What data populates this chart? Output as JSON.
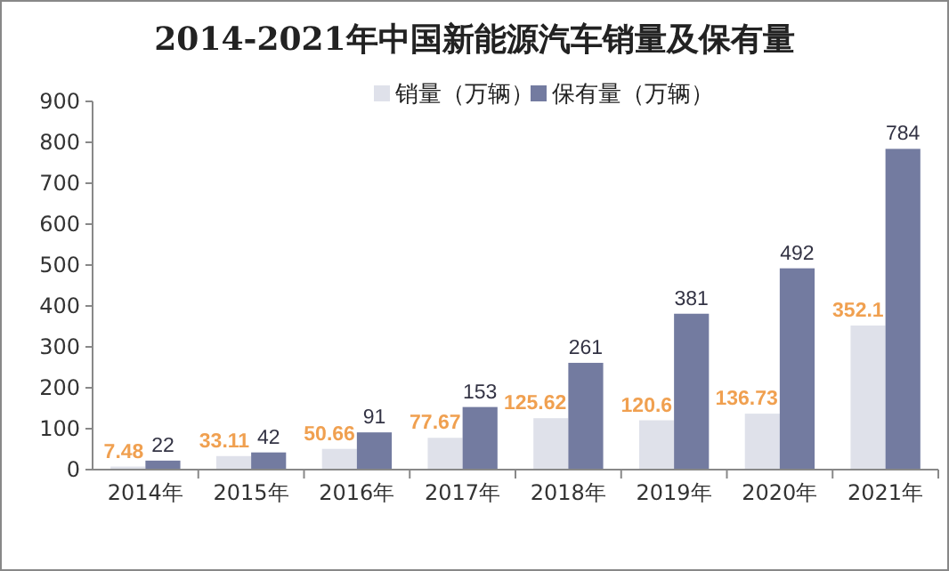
{
  "chart_data": {
    "type": "bar",
    "title": "2014-2021年中国新能源汽车销量及保有量",
    "categories": [
      "2014年",
      "2015年",
      "2016年",
      "2017年",
      "2018年",
      "2019年",
      "2020年",
      "2021年"
    ],
    "series": [
      {
        "name": "销量（万辆）",
        "color": "#dfe1ea",
        "values": [
          7.48,
          33.11,
          50.66,
          77.67,
          125.62,
          120.6,
          136.73,
          352.1
        ]
      },
      {
        "name": "保有量（万辆）",
        "color": "#737ba0",
        "values": [
          22,
          42,
          91,
          153,
          261,
          381,
          492,
          784
        ]
      }
    ],
    "ylim": [
      0,
      900
    ],
    "yticks": [
      0,
      100,
      200,
      300,
      400,
      500,
      600,
      700,
      800,
      900
    ],
    "grid": false,
    "legend": "top",
    "data_labels": true
  }
}
